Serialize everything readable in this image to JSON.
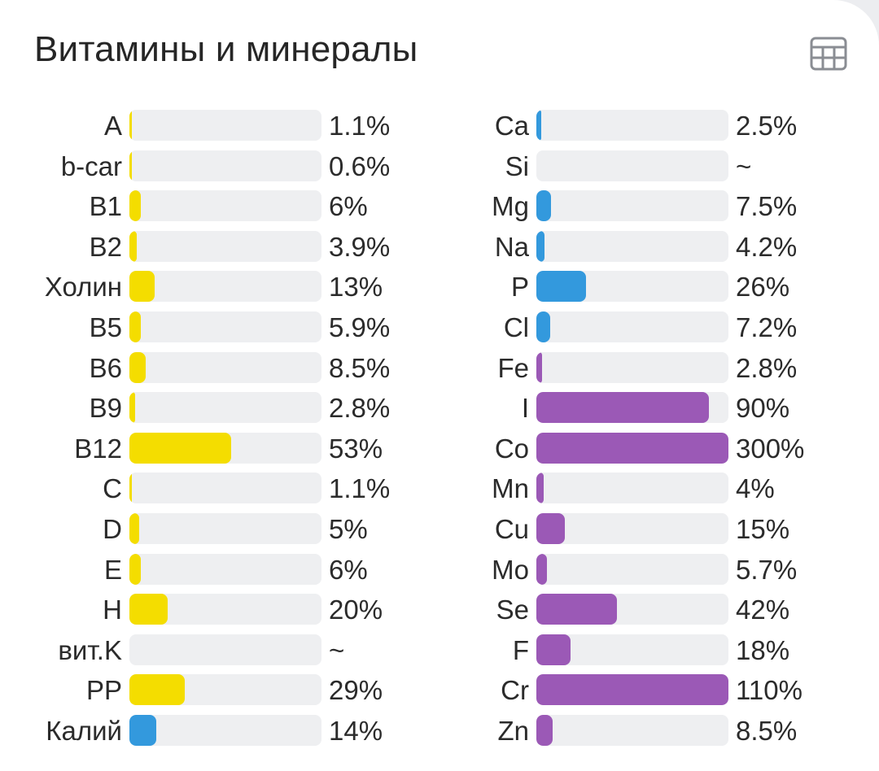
{
  "title": "Витамины и минералы",
  "icons": {
    "table_view": "table-icon"
  },
  "colors": {
    "vitamin": "#f4dd00",
    "mineral_blue": "#3399dd",
    "mineral_purple": "#9b59b6",
    "track": "#eeeff1",
    "text": "#2b2b2b"
  },
  "left_column": [
    {
      "name": "A",
      "value": "1.1%",
      "percent": 1.1,
      "color": "vitamin"
    },
    {
      "name": "b-car",
      "value": "0.6%",
      "percent": 0.6,
      "color": "vitamin"
    },
    {
      "name": "B1",
      "value": "6%",
      "percent": 6,
      "color": "vitamin"
    },
    {
      "name": "B2",
      "value": "3.9%",
      "percent": 3.9,
      "color": "vitamin"
    },
    {
      "name": "Холин",
      "value": "13%",
      "percent": 13,
      "color": "vitamin"
    },
    {
      "name": "B5",
      "value": "5.9%",
      "percent": 5.9,
      "color": "vitamin"
    },
    {
      "name": "B6",
      "value": "8.5%",
      "percent": 8.5,
      "color": "vitamin"
    },
    {
      "name": "B9",
      "value": "2.8%",
      "percent": 2.8,
      "color": "vitamin"
    },
    {
      "name": "B12",
      "value": "53%",
      "percent": 53,
      "color": "vitamin"
    },
    {
      "name": "C",
      "value": "1.1%",
      "percent": 1.1,
      "color": "vitamin"
    },
    {
      "name": "D",
      "value": "5%",
      "percent": 5,
      "color": "vitamin"
    },
    {
      "name": "E",
      "value": "6%",
      "percent": 6,
      "color": "vitamin"
    },
    {
      "name": "H",
      "value": "20%",
      "percent": 20,
      "color": "vitamin"
    },
    {
      "name": "вит.K",
      "value": "~",
      "percent": 0,
      "color": "vitamin"
    },
    {
      "name": "PP",
      "value": "29%",
      "percent": 29,
      "color": "vitamin"
    },
    {
      "name": "Калий",
      "value": "14%",
      "percent": 14,
      "color": "mineral_blue"
    }
  ],
  "right_column": [
    {
      "name": "Ca",
      "value": "2.5%",
      "percent": 2.5,
      "color": "mineral_blue"
    },
    {
      "name": "Si",
      "value": "~",
      "percent": 0,
      "color": "mineral_blue"
    },
    {
      "name": "Mg",
      "value": "7.5%",
      "percent": 7.5,
      "color": "mineral_blue"
    },
    {
      "name": "Na",
      "value": "4.2%",
      "percent": 4.2,
      "color": "mineral_blue"
    },
    {
      "name": "P",
      "value": "26%",
      "percent": 26,
      "color": "mineral_blue"
    },
    {
      "name": "Cl",
      "value": "7.2%",
      "percent": 7.2,
      "color": "mineral_blue"
    },
    {
      "name": "Fe",
      "value": "2.8%",
      "percent": 2.8,
      "color": "mineral_purple"
    },
    {
      "name": "I",
      "value": "90%",
      "percent": 90,
      "color": "mineral_purple"
    },
    {
      "name": "Co",
      "value": "300%",
      "percent": 300,
      "color": "mineral_purple"
    },
    {
      "name": "Mn",
      "value": "4%",
      "percent": 4,
      "color": "mineral_purple"
    },
    {
      "name": "Cu",
      "value": "15%",
      "percent": 15,
      "color": "mineral_purple"
    },
    {
      "name": "Mo",
      "value": "5.7%",
      "percent": 5.7,
      "color": "mineral_purple"
    },
    {
      "name": "Se",
      "value": "42%",
      "percent": 42,
      "color": "mineral_purple"
    },
    {
      "name": "F",
      "value": "18%",
      "percent": 18,
      "color": "mineral_purple"
    },
    {
      "name": "Cr",
      "value": "110%",
      "percent": 110,
      "color": "mineral_purple"
    },
    {
      "name": "Zn",
      "value": "8.5%",
      "percent": 8.5,
      "color": "mineral_purple"
    }
  ]
}
